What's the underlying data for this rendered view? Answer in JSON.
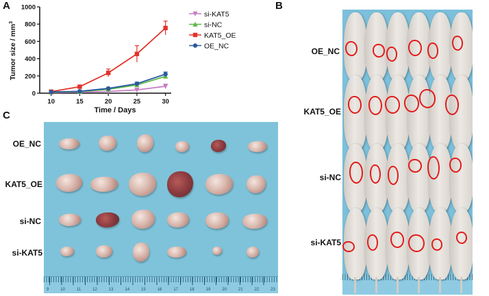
{
  "panels": {
    "a": "A",
    "b": "B",
    "c": "C"
  },
  "chart_data": {
    "type": "line",
    "ylabel": "Tumor size / mm",
    "ylabel_superscript": "3",
    "xlabel": "Time / Days",
    "x": [
      10,
      15,
      20,
      25,
      30
    ],
    "xticks": [
      "10",
      "15",
      "20",
      "25",
      "30"
    ],
    "yticks": [
      "0",
      "200",
      "400",
      "600",
      "800",
      "1000"
    ],
    "ylim": [
      0,
      1000
    ],
    "xlim": [
      8,
      31
    ],
    "legend_position": "top-right",
    "series": [
      {
        "name": "si-KAT5",
        "color": "#c77dc6",
        "marker": "triangle-down",
        "values": [
          8,
          12,
          20,
          38,
          80
        ],
        "errors": [
          3,
          4,
          6,
          12,
          25
        ]
      },
      {
        "name": "si-NC",
        "color": "#5cb847",
        "marker": "triangle-up",
        "values": [
          12,
          18,
          45,
          95,
          195
        ],
        "errors": [
          4,
          5,
          10,
          15,
          25
        ]
      },
      {
        "name": "KAT5_OE",
        "color": "#e1332a",
        "marker": "square",
        "values": [
          18,
          75,
          235,
          455,
          755
        ],
        "errors": [
          5,
          12,
          45,
          95,
          80
        ]
      },
      {
        "name": "OE_NC",
        "color": "#2a5aa0",
        "marker": "circle",
        "values": [
          14,
          22,
          55,
          110,
          220
        ],
        "errors": [
          4,
          6,
          12,
          18,
          25
        ]
      }
    ]
  },
  "photo_c": {
    "row_labels": [
      "OE_NC",
      "KAT5_OE",
      "si-NC",
      "si-KAT5"
    ],
    "ruler_numbers": [
      "9",
      "10",
      "11",
      "12",
      "13",
      "14",
      "15",
      "16",
      "17",
      "18",
      "19",
      "20",
      "21",
      "22",
      "23"
    ]
  },
  "photo_b": {
    "row_labels": [
      "OE_NC",
      "KAT5_OE",
      "si-NC",
      "si-KAT5"
    ]
  }
}
